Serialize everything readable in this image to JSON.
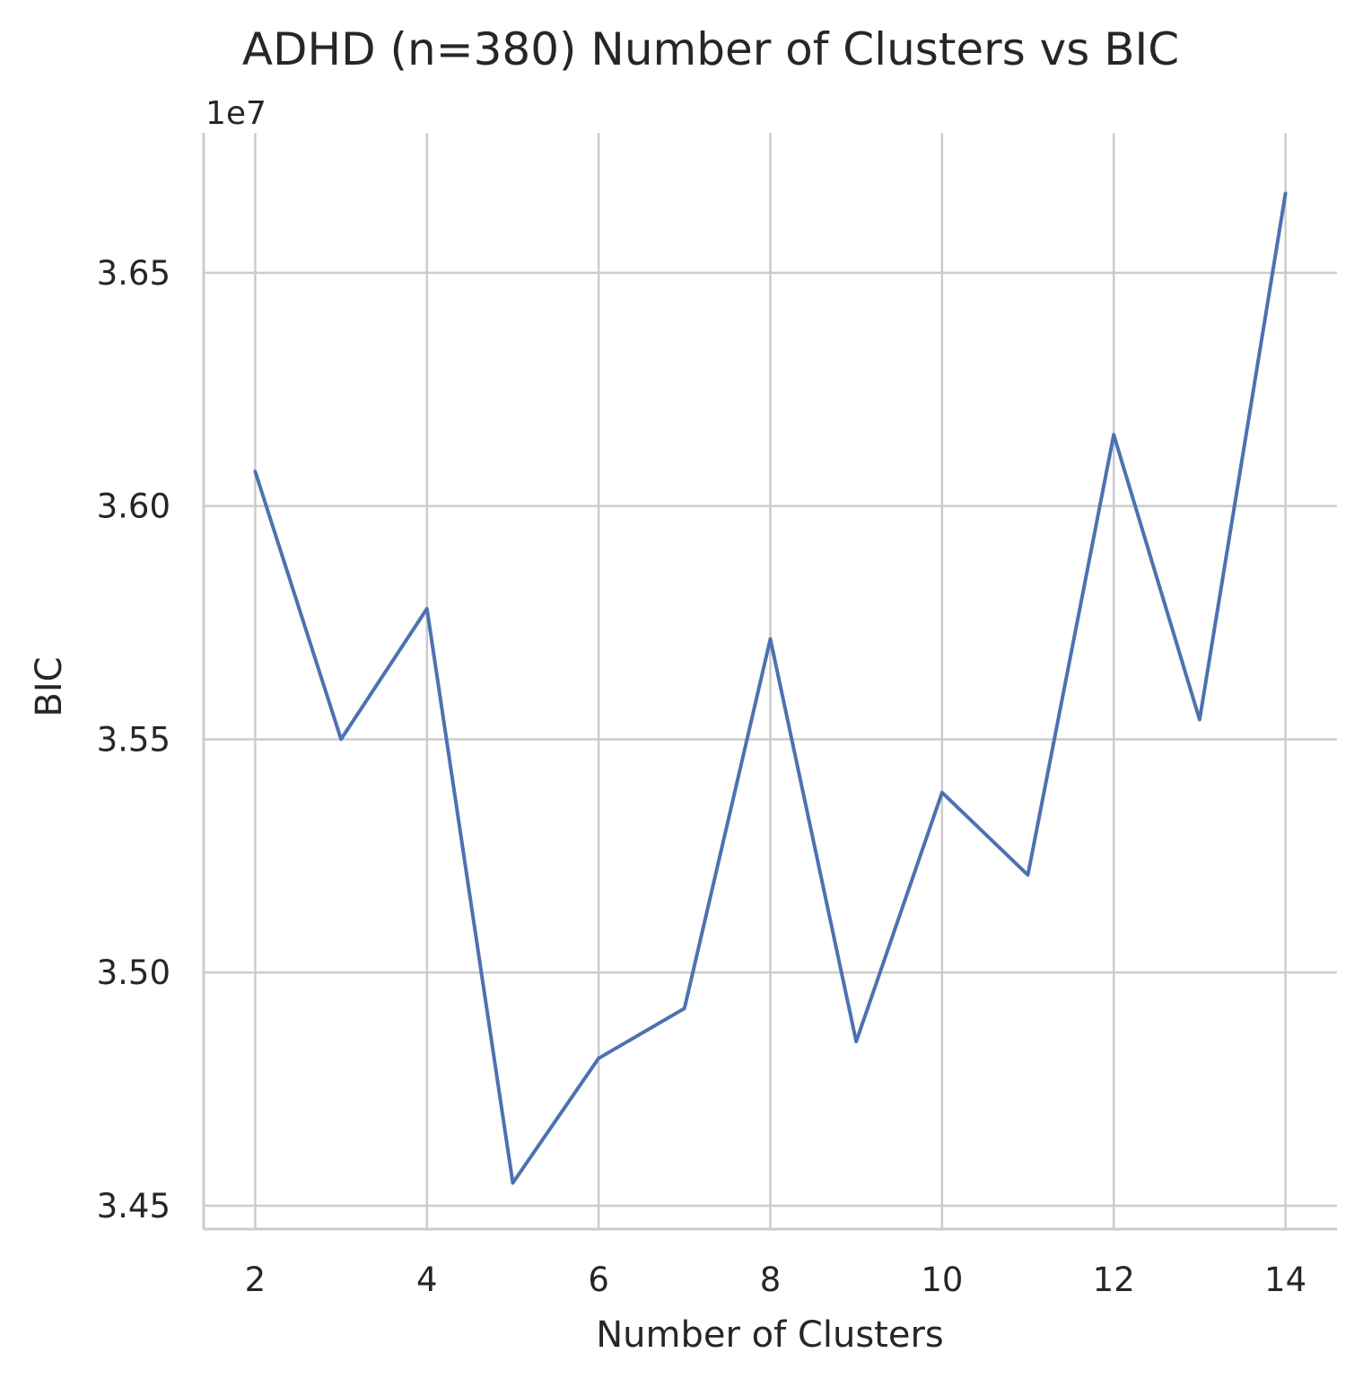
{
  "chart_data": {
    "type": "line",
    "title": "ADHD (n=380) Number of Clusters vs BIC",
    "xlabel": "Number of Clusters",
    "ylabel": "BIC",
    "y_offset_label": "1e7",
    "x": [
      2,
      3,
      4,
      5,
      6,
      7,
      8,
      9,
      10,
      11,
      12,
      13,
      14
    ],
    "series": [
      {
        "values": [
          36074000,
          35500000,
          35780000,
          34549000,
          34816000,
          34923000,
          35715000,
          34852000,
          35386000,
          35209000,
          36153000,
          35542000,
          36670000
        ]
      }
    ],
    "xlim": [
      1.4,
      14.6
    ],
    "ylim": [
      34450000,
      36800000
    ],
    "x_ticks": [
      2,
      4,
      6,
      8,
      10,
      12,
      14
    ],
    "x_tick_labels": [
      "2",
      "4",
      "6",
      "8",
      "10",
      "12",
      "14"
    ],
    "y_ticks": [
      34500000,
      35000000,
      35500000,
      36000000,
      36500000
    ],
    "y_tick_labels": [
      "3.45",
      "3.50",
      "3.55",
      "3.60",
      "3.65"
    ],
    "grid": true,
    "colors": {
      "line": "#4c72b0",
      "grid": "#cccccc",
      "text": "#262626"
    }
  }
}
